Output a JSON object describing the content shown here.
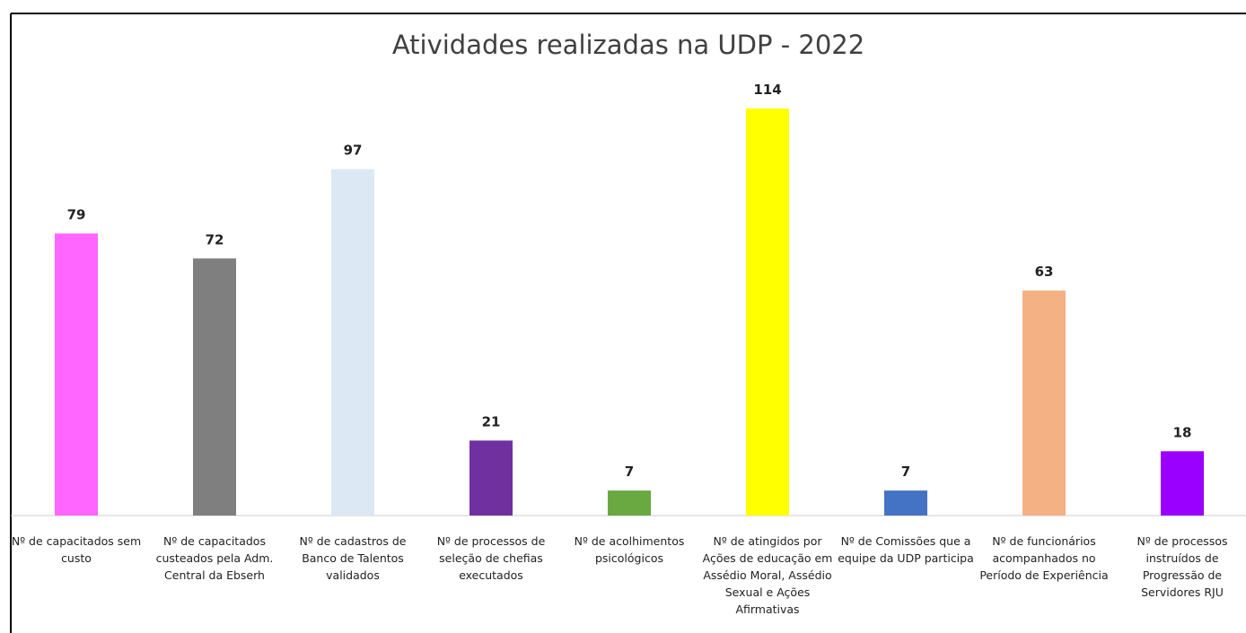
{
  "chart_data": {
    "type": "bar",
    "title": "Atividades realizadas na UDP - 2022",
    "categories": [
      "Nº de capacitados sem custo",
      "Nº de capacitados custeados pela Adm. Central da Ebserh",
      "Nº de cadastros de Banco de Talentos validados",
      "Nº de processos de seleção de chefias executados",
      "Nº de acolhimentos psicológicos",
      "Nº de atingidos por Ações de educação em Assédio Moral, Assédio Sexual e Ações Afirmativas",
      "Nº de Comissões que a equipe da UDP participa",
      "Nº de funcionários acompanhados no Período de Experiência",
      "Nº de processos instruídos de Progressão de Servidores RJU"
    ],
    "values": [
      79,
      72,
      97,
      21,
      7,
      114,
      7,
      63,
      18
    ],
    "colors": [
      "#ff66ff",
      "#7f7f7f",
      "#dde8f5",
      "#7030a0",
      "#6aa842",
      "#ffff00",
      "#4472c4",
      "#f4b183",
      "#9900ff"
    ]
  }
}
